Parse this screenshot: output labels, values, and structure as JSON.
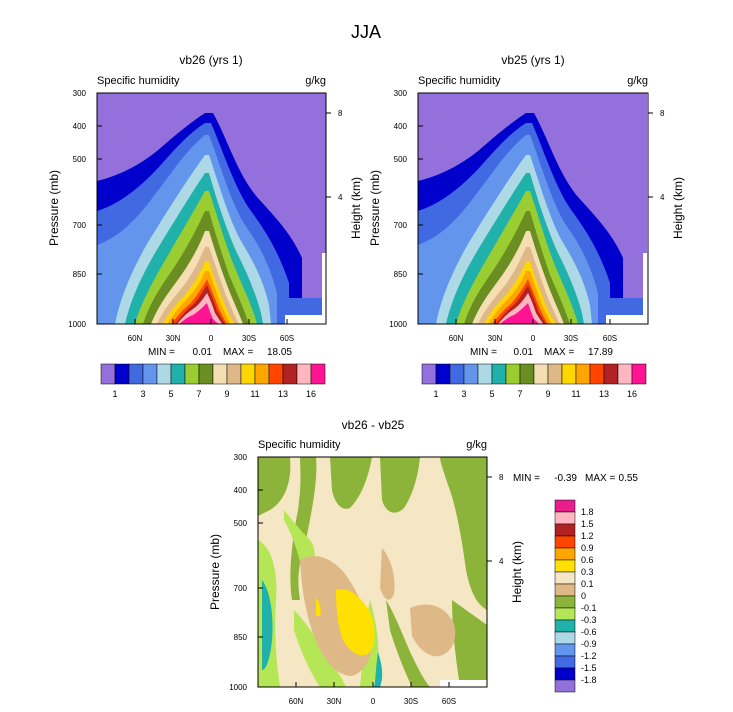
{
  "main_title": "JJA",
  "colors": {
    "background_region": "#ffffff",
    "palette_absolute": [
      "#9370db",
      "#0000cd",
      "#4169e1",
      "#6495ed",
      "#add8e6",
      "#20b2aa",
      "#9acd32",
      "#6b8e23",
      "#f5deb3",
      "#deb887",
      "#ffd700",
      "#ffa500",
      "#ff4500",
      "#b22222",
      "#ffb6c1",
      "#ff1493"
    ],
    "palette_difference": [
      "#9370db",
      "#0000cd",
      "#4169e1",
      "#6495ed",
      "#add8e6",
      "#20b2aa",
      "#b5e655",
      "#8db43a",
      "#deb887",
      "#f5e6c4",
      "#ffe000",
      "#ffa500",
      "#ff4500",
      "#b22222",
      "#ffb6c1",
      "#e91e8c"
    ]
  },
  "panels": [
    {
      "title": "vb26 (yrs 1)",
      "subtitle_left": "Specific humidity",
      "subtitle_right": "g/kg",
      "min_label": "MIN =",
      "min_value": "0.01",
      "max_label": "MAX =",
      "max_value": "18.05"
    },
    {
      "title": "vb25 (yrs 1)",
      "subtitle_left": "Specific humidity",
      "subtitle_right": "g/kg",
      "min_label": "MIN =",
      "min_value": "0.01",
      "max_label": "MAX =",
      "max_value": "17.89"
    },
    {
      "title": "vb26 - vb25",
      "subtitle_left": "Specific humidity",
      "subtitle_right": "g/kg",
      "min_label": "MIN =",
      "min_value": "-0.39",
      "max_label": "MAX =",
      "max_value": "0.55"
    }
  ],
  "chart_data": [
    {
      "type": "heatmap",
      "subtype": "latitude-pressure contour (filled)",
      "title": "vb26 (yrs 1)",
      "variable": "Specific humidity",
      "units": "g/kg",
      "ylabel_left": "Pressure (mb)",
      "ylabel_right": "Height (km)",
      "pressure_ticks": [
        "300",
        "400",
        "500",
        "700",
        "850",
        "1000"
      ],
      "height_ticks": [
        "8",
        "4"
      ],
      "lat_ticks": [
        "60N",
        "30N",
        "0",
        "30S",
        "60S"
      ],
      "xlim": [
        90,
        -90
      ],
      "ylim": [
        1000,
        300
      ],
      "contour_levels": [
        1,
        2,
        3,
        4,
        5,
        6,
        7,
        8,
        9,
        10,
        11,
        12,
        13,
        14,
        16
      ],
      "peak": {
        "lat": 10,
        "pressure": 1000,
        "value": 18.05
      },
      "min": 0.01,
      "max": 18.05
    },
    {
      "type": "heatmap",
      "subtype": "latitude-pressure contour (filled)",
      "title": "vb25 (yrs 1)",
      "variable": "Specific humidity",
      "units": "g/kg",
      "ylabel_left": "Pressure (mb)",
      "ylabel_right": "Height (km)",
      "pressure_ticks": [
        "300",
        "400",
        "500",
        "700",
        "850",
        "1000"
      ],
      "height_ticks": [
        "8",
        "4"
      ],
      "lat_ticks": [
        "60N",
        "30N",
        "0",
        "30S",
        "60S"
      ],
      "xlim": [
        90,
        -90
      ],
      "ylim": [
        1000,
        300
      ],
      "contour_levels": [
        1,
        2,
        3,
        4,
        5,
        6,
        7,
        8,
        9,
        10,
        11,
        12,
        13,
        14,
        16
      ],
      "peak": {
        "lat": 10,
        "pressure": 1000,
        "value": 17.89
      },
      "min": 0.01,
      "max": 17.89
    },
    {
      "type": "heatmap",
      "subtype": "latitude-pressure contour (filled, difference)",
      "title": "vb26 - vb25",
      "variable": "Specific humidity",
      "units": "g/kg",
      "ylabel_left": "Pressure (mb)",
      "ylabel_right": "Height (km)",
      "pressure_ticks": [
        "300",
        "400",
        "500",
        "700",
        "850",
        "1000"
      ],
      "height_ticks": [
        "8",
        "4"
      ],
      "lat_ticks": [
        "60N",
        "30N",
        "0",
        "30S",
        "60S"
      ],
      "xlim": [
        90,
        -90
      ],
      "ylim": [
        1000,
        300
      ],
      "contour_levels": [
        -1.8,
        -1.5,
        -1.2,
        -0.9,
        -0.6,
        -0.3,
        -0.1,
        0,
        0.1,
        0.3,
        0.6,
        0.9,
        1.2,
        1.5,
        1.8
      ],
      "min": -0.39,
      "max": 0.55
    }
  ],
  "colorbar_absolute": {
    "labels": [
      "1",
      "3",
      "5",
      "7",
      "9",
      "11",
      "13",
      "16"
    ]
  },
  "colorbar_difference": {
    "labels": [
      "1.8",
      "1.5",
      "1.2",
      "0.9",
      "0.6",
      "0.3",
      "0.1",
      "0",
      "-0.1",
      "-0.3",
      "-0.6",
      "-0.9",
      "-1.2",
      "-1.5",
      "-1.8"
    ]
  }
}
